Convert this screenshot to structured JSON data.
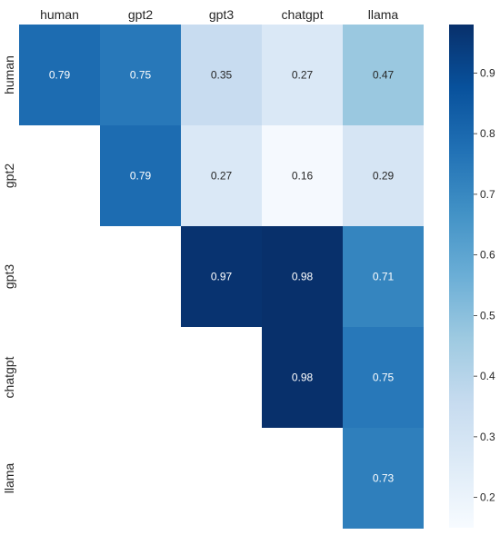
{
  "chart_data": {
    "type": "heatmap",
    "columns": [
      "human",
      "gpt2",
      "gpt3",
      "chatgpt",
      "llama"
    ],
    "rows": [
      "human",
      "gpt2",
      "gpt3",
      "chatgpt",
      "llama"
    ],
    "values": [
      [
        0.79,
        0.75,
        0.35,
        0.27,
        0.47
      ],
      [
        null,
        0.79,
        0.27,
        0.16,
        0.29
      ],
      [
        null,
        null,
        0.97,
        0.98,
        0.71
      ],
      [
        null,
        null,
        null,
        0.98,
        0.75
      ],
      [
        null,
        null,
        null,
        null,
        0.73
      ]
    ],
    "colormap": "Blues",
    "vmin": 0.15,
    "vmax": 0.98,
    "colorbar_ticks": [
      0.2,
      0.3,
      0.4,
      0.5,
      0.6,
      0.7,
      0.8,
      0.9
    ],
    "colorbar_tick_labels": [
      "0.2",
      "0.3",
      "0.4",
      "0.5",
      "0.6",
      "0.7",
      "0.8",
      "0.9"
    ],
    "x_tick_position": "top",
    "grid": false,
    "legend": "colorbar-right"
  }
}
